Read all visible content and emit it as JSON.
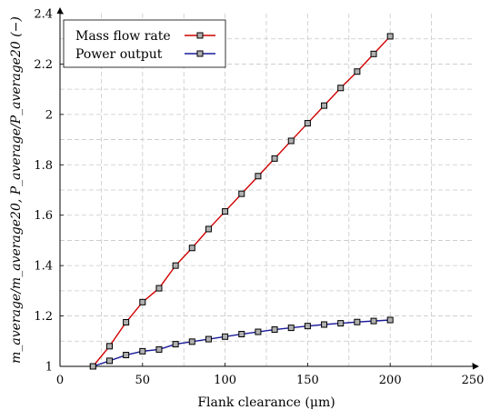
{
  "chart_data": {
    "type": "line",
    "xlabel": "Flank clearance (μm)",
    "ylabel": "m_average/m_average20, P_average/P_average20 (−)",
    "xlim": [
      0,
      250
    ],
    "ylim": [
      1,
      2.4
    ],
    "xticks": [
      0,
      50,
      100,
      150,
      200,
      250
    ],
    "yticks": [
      1,
      1.2,
      1.4,
      1.6,
      1.8,
      2,
      2.2,
      2.4
    ],
    "grid": true,
    "legend_position": "top-left",
    "x": [
      20,
      30,
      40,
      50,
      60,
      70,
      80,
      90,
      100,
      110,
      120,
      130,
      140,
      150,
      160,
      170,
      180,
      190,
      200
    ],
    "series": [
      {
        "name": "Mass flow rate",
        "color": "#d00000",
        "marker": "square",
        "values": [
          1.0,
          1.08,
          1.175,
          1.255,
          1.31,
          1.4,
          1.47,
          1.545,
          1.615,
          1.685,
          1.755,
          1.825,
          1.895,
          1.965,
          2.035,
          2.105,
          2.17,
          2.24,
          2.31
        ]
      },
      {
        "name": "Power output",
        "color": "#1a1a9a",
        "marker": "square",
        "values": [
          1.0,
          1.022,
          1.045,
          1.06,
          1.067,
          1.088,
          1.098,
          1.108,
          1.118,
          1.128,
          1.137,
          1.146,
          1.153,
          1.16,
          1.166,
          1.171,
          1.176,
          1.18,
          1.184
        ]
      }
    ]
  }
}
